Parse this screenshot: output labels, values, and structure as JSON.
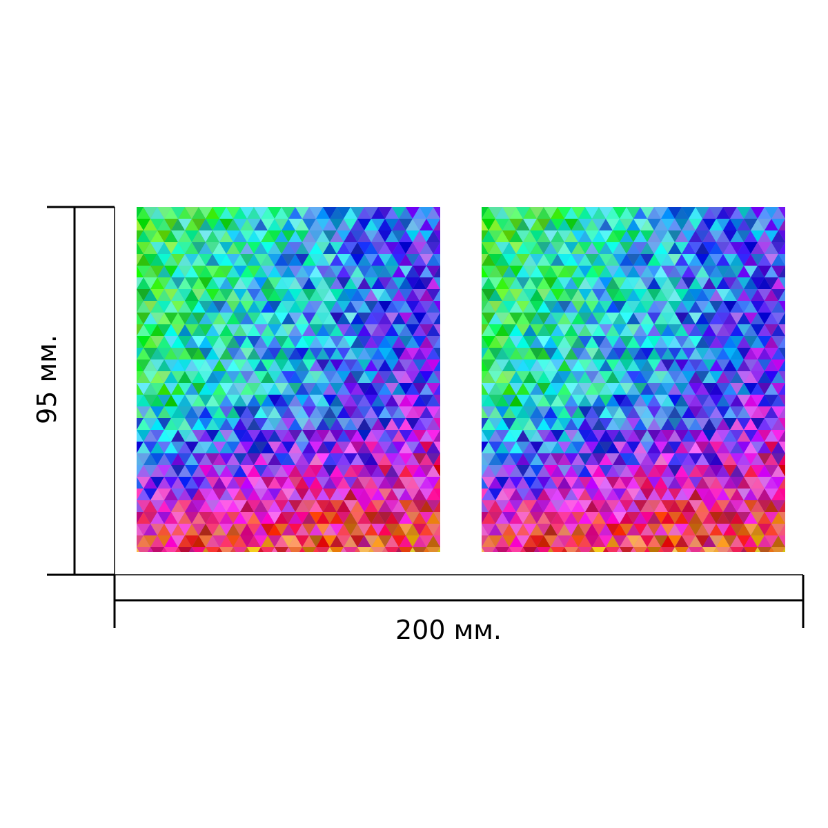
{
  "dimensions": {
    "width_label": "200 мм.",
    "height_label": "95 мм."
  },
  "panels": [
    {
      "name": "left",
      "pattern": "multicolor-triangle-mosaic"
    },
    {
      "name": "right",
      "pattern": "multicolor-triangle-mosaic"
    }
  ],
  "colors": {
    "line": "#000000",
    "background": "#ffffff"
  }
}
